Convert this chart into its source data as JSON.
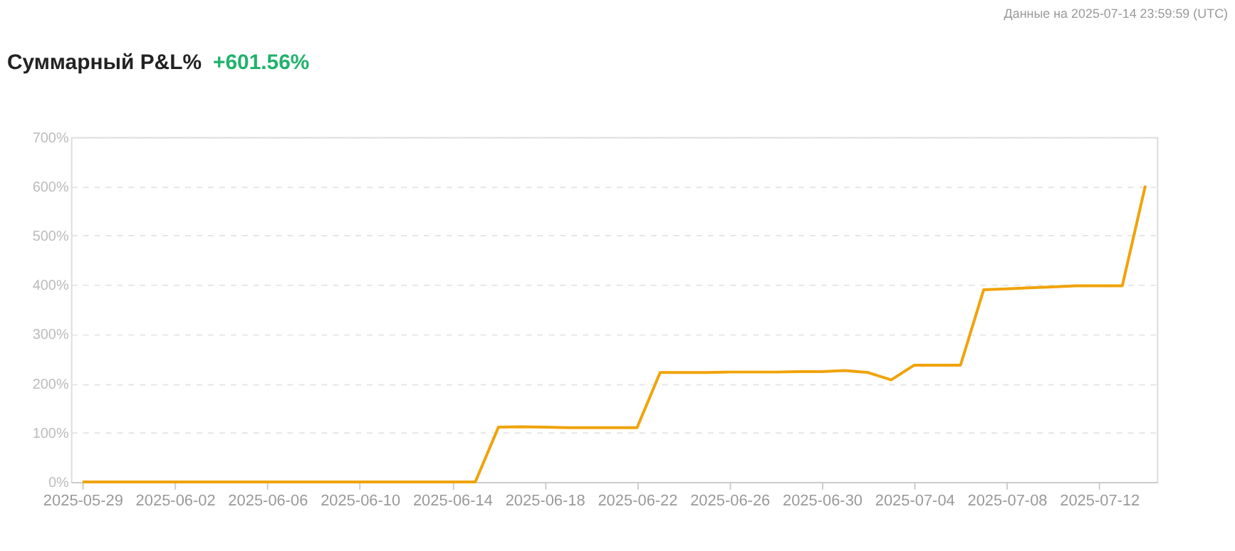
{
  "chart_data": {
    "type": "line",
    "title": "Суммарный P&L%",
    "subtitle": "+601.56%",
    "annotations": [
      "Данные на 2025-07-14 23:59:59 (UTC)"
    ],
    "x": [
      "2025-05-29",
      "2025-05-30",
      "2025-05-31",
      "2025-06-01",
      "2025-06-02",
      "2025-06-03",
      "2025-06-04",
      "2025-06-05",
      "2025-06-06",
      "2025-06-07",
      "2025-06-08",
      "2025-06-09",
      "2025-06-10",
      "2025-06-11",
      "2025-06-12",
      "2025-06-13",
      "2025-06-14",
      "2025-06-15",
      "2025-06-16",
      "2025-06-17",
      "2025-06-18",
      "2025-06-19",
      "2025-06-20",
      "2025-06-21",
      "2025-06-22",
      "2025-06-23",
      "2025-06-24",
      "2025-06-25",
      "2025-06-26",
      "2025-06-27",
      "2025-06-28",
      "2025-06-29",
      "2025-06-30",
      "2025-07-01",
      "2025-07-02",
      "2025-07-03",
      "2025-07-04",
      "2025-07-05",
      "2025-07-06",
      "2025-07-07",
      "2025-07-08",
      "2025-07-09",
      "2025-07-10",
      "2025-07-11",
      "2025-07-12",
      "2025-07-13",
      "2025-07-14"
    ],
    "series": [
      {
        "color": "#f0a30a",
        "values": [
          0,
          0,
          0,
          0,
          0,
          0,
          0,
          0,
          0,
          0,
          0,
          0,
          0,
          0,
          0,
          0,
          0,
          0,
          111,
          112,
          111,
          110,
          110,
          110,
          110,
          222,
          222,
          222,
          223,
          223,
          223,
          224,
          224,
          226,
          222,
          207,
          237,
          237,
          237,
          390,
          392,
          394,
          396,
          398,
          398,
          398,
          601.56
        ]
      }
    ],
    "xlim": [
      "2025-05-28T12:00",
      "2025-07-14T12:00"
    ],
    "xticks": [
      "2025-05-29",
      "2025-06-02",
      "2025-06-06",
      "2025-06-10",
      "2025-06-14",
      "2025-06-18",
      "2025-06-22",
      "2025-06-26",
      "2025-06-30",
      "2025-07-04",
      "2025-07-08",
      "2025-07-12"
    ],
    "ylim": [
      0,
      700
    ],
    "yticks": [
      {
        "value": 0,
        "label": "0%"
      },
      {
        "value": 100,
        "label": "100%"
      },
      {
        "value": 200,
        "label": "200%"
      },
      {
        "value": 300,
        "label": "300%"
      },
      {
        "value": 400,
        "label": "400%"
      },
      {
        "value": 500,
        "label": "500%"
      },
      {
        "value": 600,
        "label": "600%"
      },
      {
        "value": 700,
        "label": "700%"
      }
    ],
    "grid": "y",
    "marker": "none",
    "line_style": "solid"
  }
}
